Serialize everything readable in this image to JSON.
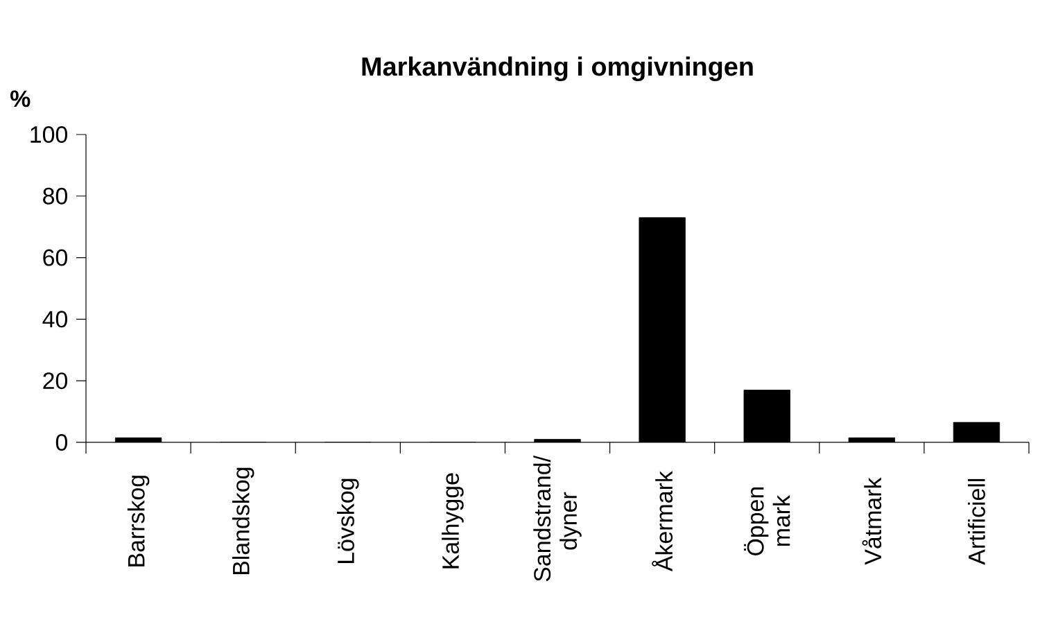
{
  "chart_data": {
    "type": "bar",
    "title": "Markanvändning i omgivningen",
    "ylabel": "%",
    "categories": [
      "Barrskog",
      "Blandskog",
      "Lövskog",
      "Kalhygge",
      "Sandstrand/ dyner",
      "Åkermark",
      "Öppen mark",
      "Våtmark",
      "Artificiell"
    ],
    "values": [
      1.5,
      0,
      0,
      0,
      1,
      73,
      17,
      1.5,
      6.5
    ],
    "color": "#000000",
    "ylim": [
      0,
      100
    ],
    "yticks": [
      0,
      20,
      40,
      60,
      80,
      100
    ]
  }
}
